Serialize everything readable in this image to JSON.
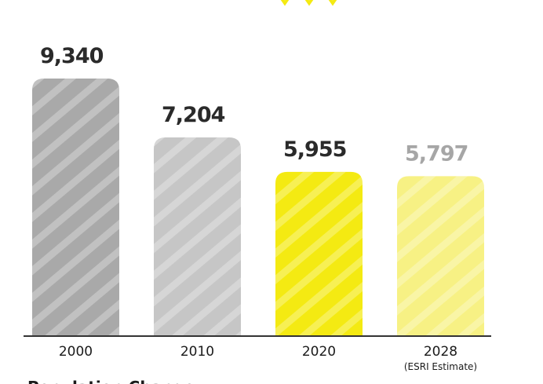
{
  "chart_data": {
    "type": "bar",
    "title": "",
    "xlabel": "",
    "ylabel": "",
    "categories": [
      "2000",
      "2010",
      "2020",
      "2028"
    ],
    "category_sublabels": [
      "",
      "",
      "",
      "(ESRI Estimate)"
    ],
    "values": [
      9340,
      7204,
      5955,
      5797
    ],
    "value_labels": [
      "9,340",
      "7,204",
      "5,955",
      "5,797"
    ],
    "ylim": [
      0,
      10000
    ],
    "grid": false,
    "legend": "none",
    "bar_colors": [
      "#a9a9a9",
      "#c6c6c6",
      "#f4ea12",
      "#f7f184"
    ],
    "label_colors": [
      "#2a2a2a",
      "#2a2a2a",
      "#2a2a2a",
      "#a6a6a6"
    ],
    "stripe_color": "#ffffff",
    "axis_color": "#333333",
    "accent_color": "#f4ea12"
  },
  "footer": {
    "title": "Population Change"
  }
}
